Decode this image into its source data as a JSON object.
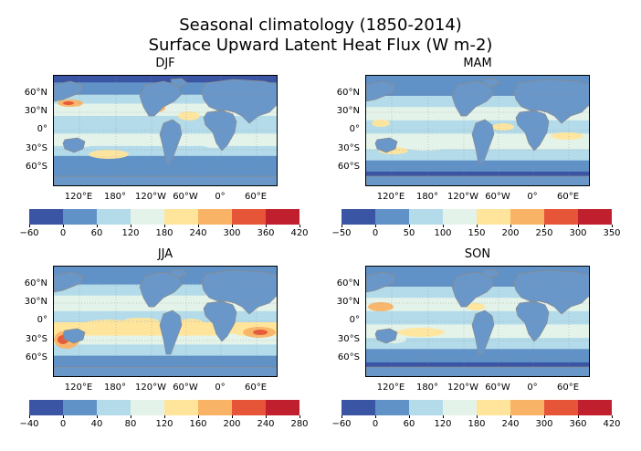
{
  "chart_data": {
    "type": "heatmap",
    "title": "Seasonal climatology  (1850-2014)",
    "subtitle": "Surface Upward Latent Heat Flux (W m-2)",
    "colors": [
      "#3b55a5",
      "#6092c7",
      "#b3dbea",
      "#e4f3ea",
      "#ffe59c",
      "#f9b366",
      "#e65538",
      "#c0202d"
    ],
    "lat_labels": [
      "60°N",
      "30°N",
      "0°",
      "30°S",
      "60°S"
    ],
    "lon_labels": [
      "120°E",
      "180°",
      "120°W",
      "60°W",
      "0°",
      "60°E"
    ],
    "panels": [
      {
        "name": "DJF",
        "colorbar_ticks": [
          "−60",
          "0",
          "60",
          "120",
          "180",
          "240",
          "300",
          "360",
          "420"
        ]
      },
      {
        "name": "MAM",
        "colorbar_ticks": [
          "−50",
          "0",
          "50",
          "100",
          "150",
          "200",
          "250",
          "300",
          "350"
        ]
      },
      {
        "name": "JJA",
        "colorbar_ticks": [
          "−40",
          "0",
          "40",
          "80",
          "120",
          "160",
          "200",
          "240",
          "280"
        ]
      },
      {
        "name": "SON",
        "colorbar_ticks": [
          "−60",
          "0",
          "60",
          "120",
          "180",
          "240",
          "300",
          "360",
          "420"
        ]
      }
    ]
  }
}
